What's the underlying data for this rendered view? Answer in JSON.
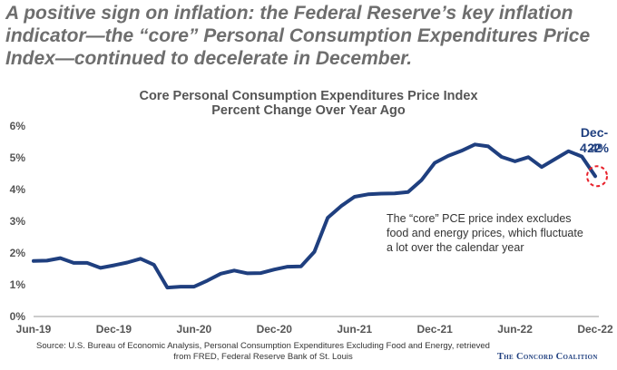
{
  "headline": "A positive sign on inflation: the Federal Reserve’s key inflation indicator—the “core” Personal Consumption Expenditures Price Index—continued to decelerate in December.",
  "annotation": "The “core” PCE price index excludes food and energy prices, which fluctuate a lot over the calendar year",
  "callout": {
    "date": "Dec-22",
    "value": "4.4%"
  },
  "source": "Source: U.S. Bureau of Economic Analysis, Personal Consumption Expenditures Excluding Food and Energy, retrieved from FRED, Federal Reserve Bank of St. Louis",
  "brand": "The Concord Coalition",
  "colors": {
    "line": "#1f3f7f",
    "highlight": "#e8202a",
    "axis": "#999999",
    "headline": "#6e6e6e"
  },
  "chart_data": {
    "type": "line",
    "title": "Core Personal Consumption Expenditures Price Index",
    "subtitle": "Percent Change Over Year Ago",
    "xlabel": "",
    "ylabel": "",
    "ylim": [
      0,
      6
    ],
    "yticks": [
      "0%",
      "1%",
      "2%",
      "3%",
      "4%",
      "5%",
      "6%"
    ],
    "xticks": [
      "Jun-19",
      "Dec-19",
      "Jun-20",
      "Dec-20",
      "Jun-21",
      "Dec-21",
      "Jun-22",
      "Dec-22"
    ],
    "grid": false,
    "x": [
      "Jun-19",
      "Jul-19",
      "Aug-19",
      "Sep-19",
      "Oct-19",
      "Nov-19",
      "Dec-19",
      "Jan-20",
      "Feb-20",
      "Mar-20",
      "Apr-20",
      "May-20",
      "Jun-20",
      "Jul-20",
      "Aug-20",
      "Sep-20",
      "Oct-20",
      "Nov-20",
      "Dec-20",
      "Jan-21",
      "Feb-21",
      "Mar-21",
      "Apr-21",
      "May-21",
      "Jun-21",
      "Jul-21",
      "Aug-21",
      "Sep-21",
      "Oct-21",
      "Nov-21",
      "Dec-21",
      "Jan-22",
      "Feb-22",
      "Mar-22",
      "Apr-22",
      "May-22",
      "Jun-22",
      "Jul-22",
      "Aug-22",
      "Sep-22",
      "Oct-22",
      "Nov-22",
      "Dec-22"
    ],
    "series": [
      {
        "values": [
          1.75,
          1.76,
          1.84,
          1.69,
          1.69,
          1.53,
          1.61,
          1.7,
          1.82,
          1.63,
          0.91,
          0.94,
          0.94,
          1.13,
          1.35,
          1.45,
          1.36,
          1.37,
          1.48,
          1.57,
          1.58,
          2.04,
          3.11,
          3.48,
          3.77,
          3.85,
          3.87,
          3.88,
          3.92,
          4.29,
          4.84,
          5.06,
          5.22,
          5.42,
          5.36,
          5.03,
          4.89,
          5.02,
          4.71,
          4.96,
          5.21,
          5.04,
          4.42
        ]
      }
    ]
  }
}
